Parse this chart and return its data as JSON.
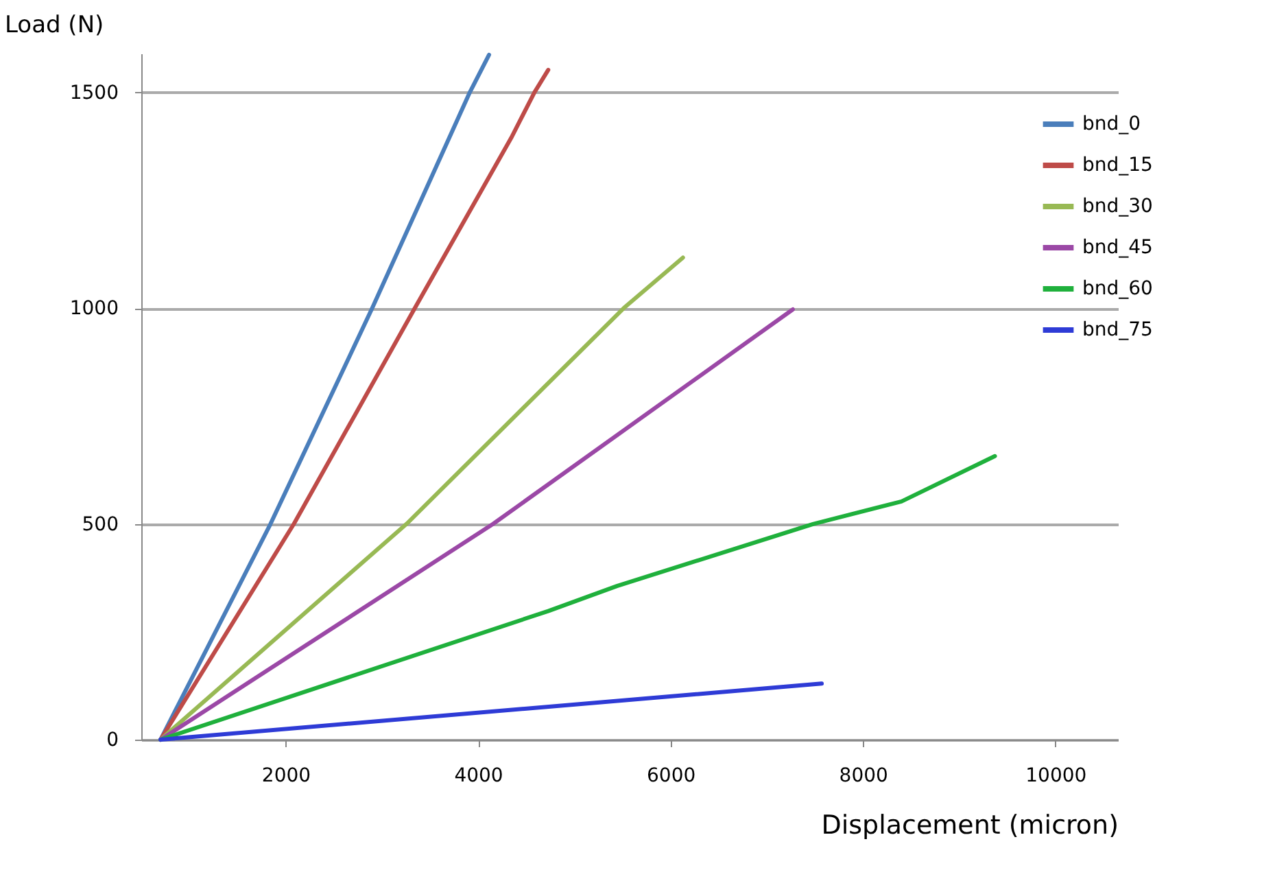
{
  "chart_data": {
    "type": "line",
    "xlabel": "Displacement (micron)",
    "ylabel": "Load (N)",
    "xlim": [
      500,
      10650
    ],
    "xticks": [
      2000,
      4000,
      6000,
      8000,
      10000
    ],
    "ylim": [
      0,
      1590
    ],
    "yticks": [
      0,
      500,
      1000,
      1500
    ],
    "grid": "y",
    "legend": "top right",
    "marker": "none",
    "line_style": "solid",
    "series": [
      {
        "name": "bnd_0",
        "color": "#4a7ebb",
        "x": [
          700,
          1843,
          2900,
          3914,
          4114
        ],
        "values": [
          0,
          500,
          1000,
          1500,
          1587
        ]
      },
      {
        "name": "bnd_15",
        "color": "#be4b48",
        "x": [
          700,
          2086,
          3343,
          4343,
          4586,
          4729
        ],
        "values": [
          0,
          500,
          1000,
          1394,
          1500,
          1552
        ]
      },
      {
        "name": "bnd_30",
        "color": "#98b954",
        "x": [
          700,
          3257,
          5514,
          6129
        ],
        "values": [
          0,
          500,
          1000,
          1117
        ]
      },
      {
        "name": "bnd_45",
        "color": "#9b48a6",
        "x": [
          700,
          4157,
          7271
        ],
        "values": [
          0,
          500,
          997
        ]
      },
      {
        "name": "bnd_60",
        "color": "#1fb03c",
        "x": [
          700,
          4729,
          5443,
          7486,
          8400,
          9371
        ],
        "values": [
          0,
          298,
          356,
          500,
          552,
          657
        ]
      },
      {
        "name": "bnd_75",
        "color": "#2e3bd6",
        "x": [
          700,
          7571
        ],
        "values": [
          0,
          130
        ]
      }
    ]
  }
}
